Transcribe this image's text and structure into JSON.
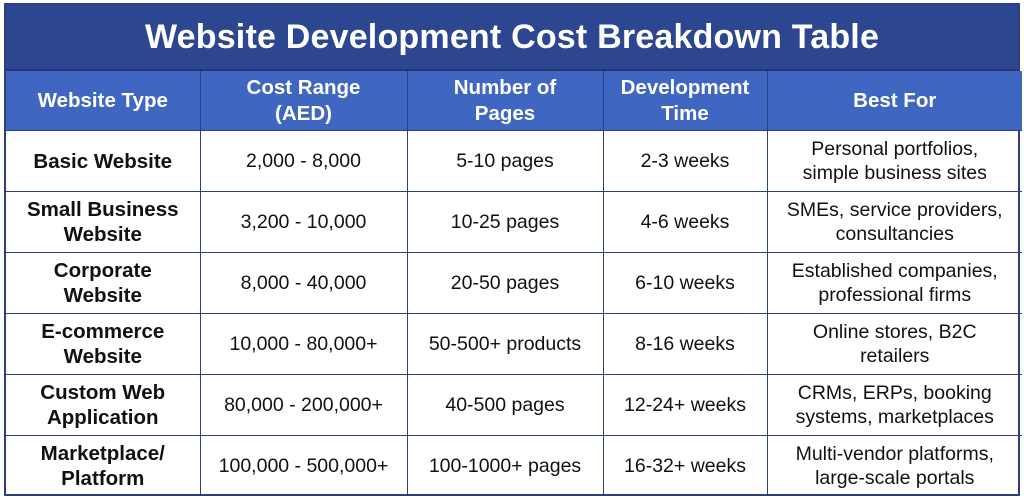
{
  "title": "Website Development Cost Breakdown Table",
  "colors": {
    "title_bg": "#2d4690",
    "header_bg": "#3f67c2",
    "border": "#2a3f80"
  },
  "headers": [
    [
      "Website Type"
    ],
    [
      "Cost Range",
      "(AED)"
    ],
    [
      "Number of",
      "Pages"
    ],
    [
      "Development",
      "Time"
    ],
    [
      "Best For"
    ]
  ],
  "rows": [
    {
      "type": [
        "Basic Website"
      ],
      "cost": "2,000 - 8,000",
      "pages": "5-10 pages",
      "time": "2-3 weeks",
      "best_for": [
        "Personal portfolios,",
        "simple business sites"
      ]
    },
    {
      "type": [
        "Small Business",
        "Website"
      ],
      "cost": "3,200 - 10,000",
      "pages": "10-25 pages",
      "time": "4-6 weeks",
      "best_for": [
        "SMEs, service providers,",
        "consultancies"
      ]
    },
    {
      "type": [
        "Corporate",
        "Website"
      ],
      "cost": "8,000 - 40,000",
      "pages": "20-50 pages",
      "time": "6-10 weeks",
      "best_for": [
        "Established companies,",
        "professional firms"
      ]
    },
    {
      "type": [
        "E-commerce",
        "Website"
      ],
      "cost": "10,000 - 80,000+",
      "pages": "50-500+ products",
      "time": "8-16 weeks",
      "best_for": [
        "Online stores, B2C",
        "retailers"
      ]
    },
    {
      "type": [
        "Custom Web",
        "Application"
      ],
      "cost": "80,000 - 200,000+",
      "pages": "40-500 pages",
      "time": "12-24+ weeks",
      "best_for": [
        "CRMs, ERPs, booking",
        "systems, marketplaces"
      ]
    },
    {
      "type": [
        "Marketplace/",
        "Platform"
      ],
      "cost": "100,000 - 500,000+",
      "pages": "100-1000+ pages",
      "time": "16-32+ weeks",
      "best_for": [
        "Multi-vendor platforms,",
        "large-scale portals"
      ]
    }
  ]
}
